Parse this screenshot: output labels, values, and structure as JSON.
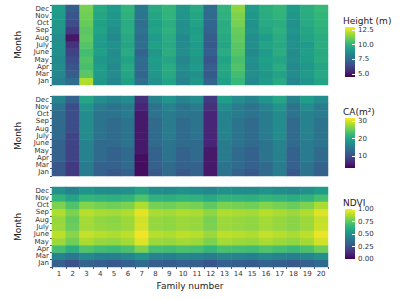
{
  "chart_data": [
    {
      "type": "heatmap",
      "y_label": "Month",
      "tick_labels": "y",
      "color": "viridis",
      "categories": [
        1,
        2,
        3,
        4,
        5,
        6,
        7,
        8,
        9,
        10,
        11,
        12,
        13,
        14,
        15,
        16,
        17,
        18,
        19,
        20
      ],
      "y_categories": [
        "Jan",
        "Mar",
        "Apr",
        "May",
        "June",
        "July",
        "Aug",
        "Sep",
        "Oct",
        "Nov",
        "Dec"
      ],
      "values": [
        [
          8.2,
          7.5,
          12.0,
          9.0,
          8.4,
          9.3,
          7.6,
          8.8,
          9.4,
          8.3,
          9.0,
          7.2,
          9.3,
          10.2,
          8.5,
          9.1,
          9.6,
          8.4,
          8.9,
          9.4
        ],
        [
          8.4,
          7.0,
          10.8,
          9.1,
          8.6,
          9.5,
          7.3,
          9.0,
          9.6,
          8.5,
          8.8,
          6.9,
          9.5,
          10.4,
          8.7,
          9.0,
          9.4,
          8.6,
          9.1,
          9.6
        ],
        [
          8.6,
          6.8,
          10.5,
          9.2,
          8.5,
          9.6,
          7.4,
          9.1,
          9.7,
          8.6,
          9.1,
          7.0,
          9.6,
          10.6,
          8.6,
          9.2,
          9.7,
          8.5,
          9.0,
          9.5
        ],
        [
          8.5,
          6.5,
          10.6,
          9.0,
          8.7,
          9.4,
          7.5,
          9.2,
          9.5,
          8.4,
          9.0,
          6.8,
          9.4,
          10.5,
          8.8,
          9.3,
          9.5,
          8.7,
          9.2,
          9.7
        ],
        [
          8.7,
          6.2,
          10.4,
          9.3,
          8.6,
          9.7,
          7.2,
          9.0,
          9.8,
          8.7,
          9.2,
          7.1,
          9.7,
          10.7,
          8.5,
          9.1,
          9.8,
          8.6,
          9.3,
          9.6
        ],
        [
          8.8,
          5.8,
          10.7,
          9.1,
          8.8,
          9.5,
          7.6,
          9.3,
          9.6,
          8.6,
          9.1,
          6.9,
          9.5,
          10.8,
          8.7,
          9.4,
          9.6,
          8.8,
          9.1,
          9.8
        ],
        [
          8.6,
          5.0,
          10.9,
          9.2,
          8.5,
          9.6,
          7.5,
          9.1,
          9.7,
          8.5,
          9.3,
          7.0,
          9.6,
          10.9,
          8.6,
          9.2,
          9.7,
          8.7,
          9.4,
          9.7
        ],
        [
          8.9,
          6.0,
          10.8,
          9.4,
          8.7,
          9.8,
          7.7,
          9.4,
          9.9,
          8.8,
          9.2,
          7.2,
          9.8,
          11.0,
          8.9,
          9.5,
          9.9,
          8.9,
          9.5,
          9.9
        ],
        [
          9.0,
          6.5,
          11.0,
          9.3,
          8.9,
          9.7,
          7.6,
          9.3,
          9.8,
          8.7,
          9.4,
          7.3,
          9.7,
          11.2,
          8.8,
          9.6,
          9.8,
          8.8,
          9.6,
          10.0
        ],
        [
          9.1,
          6.8,
          11.1,
          9.5,
          9.0,
          9.9,
          7.8,
          9.5,
          10.0,
          8.9,
          9.5,
          7.4,
          9.9,
          11.3,
          9.0,
          9.7,
          10.0,
          9.0,
          9.7,
          10.1
        ],
        [
          9.2,
          7.0,
          11.2,
          9.6,
          9.1,
          10.0,
          7.9,
          9.6,
          10.1,
          9.0,
          9.6,
          7.5,
          10.0,
          11.5,
          9.1,
          9.8,
          10.1,
          9.1,
          9.8,
          10.2
        ]
      ],
      "colorbar": {
        "title": "Height (m)",
        "range": [
          4.5,
          13
        ],
        "ticks": [
          {
            "value": 5,
            "label": "5.0"
          },
          7.5,
          {
            "value": 10,
            "label": "10.0"
          },
          12.5
        ]
      }
    },
    {
      "type": "heatmap",
      "y_label": "Month",
      "tick_labels": "y",
      "color": "viridis",
      "categories": [
        1,
        2,
        3,
        4,
        5,
        6,
        7,
        8,
        9,
        10,
        11,
        12,
        13,
        14,
        15,
        16,
        17,
        18,
        19,
        20
      ],
      "y_categories": [
        "Jan",
        "Mar",
        "Apr",
        "May",
        "June",
        "July",
        "Aug",
        "Sep",
        "Oct",
        "Nov",
        "Dec"
      ],
      "values": [
        [
          11,
          8,
          15,
          12,
          11,
          12,
          4,
          11,
          13,
          11,
          12,
          5,
          14,
          12,
          11,
          13,
          15,
          11,
          14,
          12
        ],
        [
          11,
          8,
          15,
          12,
          12,
          13,
          4,
          12,
          13,
          12,
          12,
          5,
          14,
          13,
          12,
          13,
          15,
          12,
          14,
          12
        ],
        [
          12,
          9,
          16,
          13,
          12,
          13,
          4,
          12,
          14,
          12,
          13,
          5,
          15,
          13,
          12,
          14,
          16,
          12,
          15,
          13
        ],
        [
          12,
          9,
          16,
          13,
          12,
          13,
          5,
          12,
          14,
          12,
          13,
          5,
          15,
          13,
          12,
          14,
          16,
          12,
          15,
          13
        ],
        [
          12,
          9,
          16,
          13,
          13,
          14,
          5,
          13,
          14,
          13,
          13,
          6,
          15,
          14,
          13,
          14,
          16,
          13,
          15,
          14
        ],
        [
          13,
          9,
          17,
          14,
          13,
          14,
          5,
          13,
          15,
          13,
          14,
          6,
          16,
          14,
          13,
          15,
          17,
          13,
          16,
          14
        ],
        [
          13,
          10,
          17,
          14,
          13,
          14,
          5,
          13,
          15,
          13,
          14,
          6,
          16,
          14,
          13,
          15,
          17,
          13,
          16,
          14
        ],
        [
          13,
          10,
          17,
          14,
          13,
          14,
          5,
          13,
          15,
          13,
          14,
          6,
          16,
          14,
          13,
          15,
          17,
          13,
          16,
          14
        ],
        [
          13,
          10,
          17,
          14,
          14,
          15,
          5,
          14,
          15,
          14,
          14,
          6,
          16,
          15,
          14,
          15,
          17,
          14,
          16,
          15
        ],
        [
          14,
          10,
          18,
          15,
          14,
          15,
          6,
          14,
          16,
          14,
          15,
          7,
          17,
          15,
          14,
          16,
          18,
          14,
          17,
          15
        ],
        [
          16,
          12,
          20,
          17,
          16,
          17,
          7,
          16,
          18,
          16,
          17,
          8,
          19,
          17,
          16,
          18,
          20,
          16,
          19,
          17
        ]
      ],
      "colorbar": {
        "title": "CA(m²)",
        "range": [
          3,
          32
        ],
        "ticks": [
          10,
          20,
          30
        ]
      }
    },
    {
      "type": "heatmap",
      "y_label": "Month",
      "x_label": "Family number",
      "color": "viridis",
      "categories": [
        1,
        2,
        3,
        4,
        5,
        6,
        7,
        8,
        9,
        10,
        11,
        12,
        13,
        14,
        15,
        16,
        17,
        18,
        19,
        20
      ],
      "y_categories": [
        "Jan",
        "Mar",
        "Apr",
        "May",
        "June",
        "July",
        "Aug",
        "Sep",
        "Oct",
        "Nov",
        "Dec"
      ],
      "values": [
        [
          0.3,
          0.25,
          0.32,
          0.3,
          0.28,
          0.31,
          0.35,
          0.3,
          0.29,
          0.31,
          0.3,
          0.27,
          0.31,
          0.3,
          0.29,
          0.32,
          0.3,
          0.28,
          0.31,
          0.34
        ],
        [
          0.45,
          0.4,
          0.47,
          0.44,
          0.43,
          0.46,
          0.52,
          0.45,
          0.44,
          0.46,
          0.45,
          0.42,
          0.46,
          0.45,
          0.44,
          0.47,
          0.45,
          0.43,
          0.46,
          0.5
        ],
        [
          0.7,
          0.62,
          0.72,
          0.69,
          0.68,
          0.71,
          0.8,
          0.7,
          0.69,
          0.71,
          0.7,
          0.66,
          0.71,
          0.7,
          0.69,
          0.72,
          0.7,
          0.68,
          0.71,
          0.78
        ],
        [
          0.85,
          0.78,
          0.87,
          0.84,
          0.83,
          0.86,
          0.95,
          0.85,
          0.84,
          0.86,
          0.85,
          0.8,
          0.86,
          0.85,
          0.84,
          0.87,
          0.85,
          0.83,
          0.86,
          0.93
        ],
        [
          0.9,
          0.82,
          0.91,
          0.89,
          0.88,
          0.9,
          0.98,
          0.89,
          0.88,
          0.9,
          0.89,
          0.85,
          0.9,
          0.89,
          0.88,
          0.91,
          0.89,
          0.87,
          0.9,
          0.97
        ],
        [
          0.85,
          0.77,
          0.86,
          0.84,
          0.83,
          0.85,
          0.94,
          0.84,
          0.83,
          0.85,
          0.84,
          0.8,
          0.85,
          0.84,
          0.83,
          0.86,
          0.84,
          0.82,
          0.85,
          0.92
        ],
        [
          0.84,
          0.76,
          0.86,
          0.83,
          0.82,
          0.85,
          0.93,
          0.84,
          0.83,
          0.85,
          0.84,
          0.79,
          0.85,
          0.84,
          0.83,
          0.86,
          0.84,
          0.82,
          0.85,
          0.91
        ],
        [
          0.88,
          0.8,
          0.89,
          0.87,
          0.86,
          0.88,
          0.96,
          0.87,
          0.86,
          0.88,
          0.87,
          0.83,
          0.88,
          0.87,
          0.86,
          0.89,
          0.87,
          0.85,
          0.88,
          0.95
        ],
        [
          0.8,
          0.72,
          0.81,
          0.79,
          0.78,
          0.8,
          0.88,
          0.79,
          0.78,
          0.8,
          0.79,
          0.75,
          0.8,
          0.79,
          0.78,
          0.81,
          0.79,
          0.77,
          0.8,
          0.87
        ],
        [
          0.65,
          0.58,
          0.66,
          0.64,
          0.63,
          0.65,
          0.72,
          0.64,
          0.63,
          0.65,
          0.64,
          0.6,
          0.65,
          0.64,
          0.63,
          0.66,
          0.64,
          0.62,
          0.65,
          0.7
        ],
        [
          0.5,
          0.45,
          0.52,
          0.49,
          0.48,
          0.5,
          0.57,
          0.49,
          0.48,
          0.5,
          0.49,
          0.46,
          0.5,
          0.49,
          0.48,
          0.51,
          0.49,
          0.47,
          0.5,
          0.55
        ]
      ],
      "colorbar": {
        "title": "NDVI",
        "range": [
          0,
          1
        ],
        "ticks": [
          {
            "value": 0,
            "label": "0.00"
          },
          0.25,
          {
            "value": 0.5,
            "label": "0.50"
          },
          0.75,
          {
            "value": 1,
            "label": "1.00"
          }
        ]
      }
    }
  ]
}
